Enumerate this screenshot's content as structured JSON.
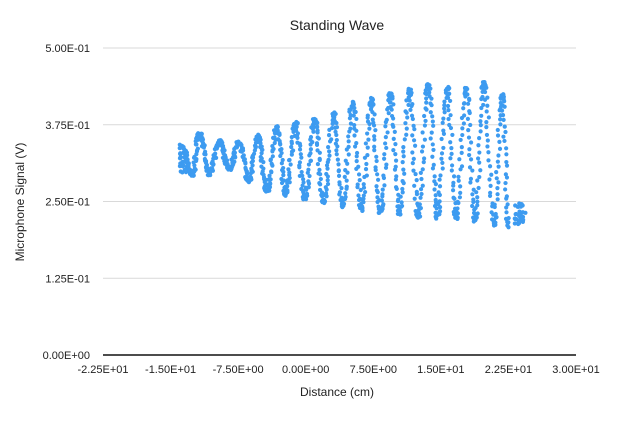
{
  "chart_data": {
    "type": "scatter",
    "title": "Standing Wave",
    "xlabel": "Distance (cm)",
    "ylabel": "Microphone Signal (V)",
    "xlim": [
      -22.5,
      30
    ],
    "ylim": [
      0,
      0.5
    ],
    "x_ticks": [
      -22.5,
      -15,
      -7.5,
      0,
      7.5,
      15,
      22.5,
      30
    ],
    "x_tick_labels": [
      "-2.25E+01",
      "-1.50E+01",
      "-7.50E+00",
      "0.00E+00",
      "7.50E+00",
      "1.50E+01",
      "2.25E+01",
      "3.00E+01"
    ],
    "y_ticks": [
      0,
      0.125,
      0.25,
      0.375,
      0.5
    ],
    "y_tick_labels": [
      "0.00E+00",
      "1.25E-01",
      "2.50E-01",
      "3.75E-01",
      "5.00E-01"
    ],
    "grid": true,
    "marker_color": "#3d9bf0",
    "series": [
      {
        "envelope": {
          "x": [
            -13.5,
            -11.5,
            -10,
            -8,
            -6.5,
            -5,
            -3,
            -1,
            1,
            3,
            5,
            7,
            9,
            11,
            13,
            15,
            17,
            19,
            21,
            22.5,
            24
          ],
          "y_max": [
            0.34,
            0.362,
            0.348,
            0.343,
            0.352,
            0.357,
            0.372,
            0.378,
            0.383,
            0.392,
            0.41,
            0.415,
            0.422,
            0.43,
            0.44,
            0.438,
            0.43,
            0.44,
            0.45,
            0.4,
            0.25
          ],
          "y_min": [
            0.295,
            0.29,
            0.3,
            0.305,
            0.285,
            0.27,
            0.265,
            0.258,
            0.252,
            0.245,
            0.24,
            0.236,
            0.232,
            0.228,
            0.225,
            0.225,
            0.224,
            0.22,
            0.21,
            0.21,
            0.215
          ]
        },
        "nodes_x": [
          -12.6,
          -10.7,
          -8.5,
          -6.3,
          -4.3,
          -2.2,
          -0.1,
          2.0,
          4.1,
          6.2,
          8.3,
          10.4,
          12.5,
          14.6,
          16.7,
          18.8,
          20.9,
          22.5
        ],
        "antinodes_x": [
          -13.8,
          -11.8,
          -9.6,
          -7.4,
          -5.3,
          -3.2,
          -1.1,
          1.0,
          3.1,
          5.2,
          7.3,
          9.4,
          11.5,
          13.6,
          15.7,
          17.8,
          19.8,
          21.8
        ]
      }
    ]
  }
}
